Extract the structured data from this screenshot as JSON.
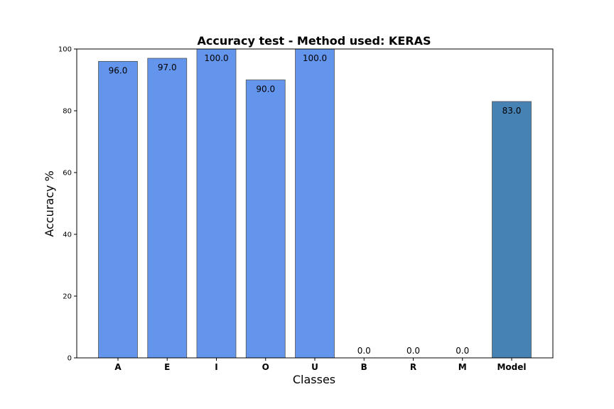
{
  "chart_data": {
    "type": "bar",
    "title": "Accuracy test - Method used: KERAS",
    "xlabel": "Classes",
    "ylabel": "Accuracy %",
    "categories": [
      "A",
      "E",
      "I",
      "O",
      "U",
      "B",
      "R",
      "M",
      "Model"
    ],
    "values": [
      96.0,
      97.0,
      100.0,
      90.0,
      100.0,
      0.0,
      0.0,
      0.0,
      83.0
    ],
    "data_labels": [
      "96.0",
      "97.0",
      "100.0",
      "90.0",
      "100.0",
      "0.0",
      "0.0",
      "0.0",
      "83.0"
    ],
    "bar_colors": [
      "#6495ED",
      "#6495ED",
      "#6495ED",
      "#6495ED",
      "#6495ED",
      "#6495ED",
      "#6495ED",
      "#6495ED",
      "#4682B4"
    ],
    "bar_edge_color": "#555555",
    "ylim": [
      0,
      100
    ],
    "yticks": [
      0,
      20,
      40,
      60,
      80,
      100
    ],
    "ytick_labels": [
      "0",
      "20",
      "40",
      "60",
      "80",
      "100"
    ],
    "grid": false,
    "legend": "none"
  }
}
